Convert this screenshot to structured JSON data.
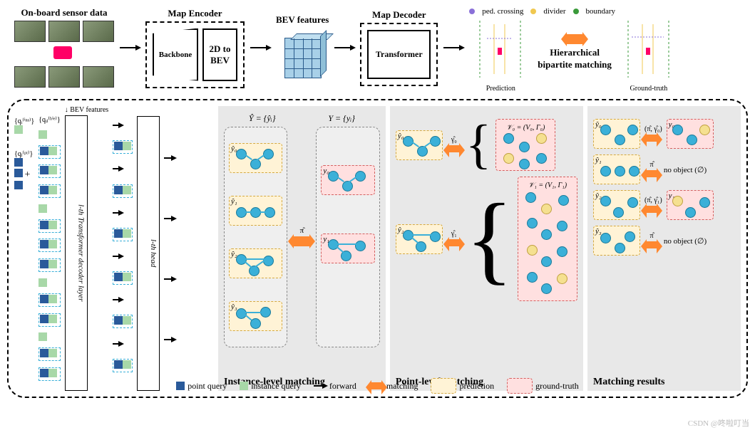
{
  "top": {
    "sensor_label": "On-board sensor data",
    "encoder_label": "Map Encoder",
    "backbone": "Backbone",
    "bev_box": "2D to BEV",
    "bev_feat": "BEV features",
    "decoder_label": "Map Decoder",
    "transformer": "Transformer",
    "pred": "Prediction",
    "gt": "Ground-truth",
    "hmatch1": "Hierarchical",
    "hmatch2": "bipartite matching",
    "legend": {
      "ped": "ped. crossing",
      "ped_color": "#8a70d8",
      "div": "divider",
      "div_color": "#f0c850",
      "bnd": "boundary",
      "bnd_color": "#3a9a3a"
    }
  },
  "bot": {
    "bev_in": "BEV features",
    "q_ins": "{qᵢ⁽ⁱⁿˢ⁾}",
    "q_hie": "{qᵢⱼ⁽ʰⁱᵉ⁾}",
    "q_pt": "{qⱼ⁽ᵖᵗ⁾}",
    "plus": "+",
    "layer": "l-th Transformer decoder layer",
    "head": "l-th head",
    "inst": {
      "title": "Instance-level matching",
      "yhat": "Ŷ = {ŷᵢ}",
      "y": "Y = {yᵢ}",
      "preds": [
        "ŷ₀",
        "ŷ₁",
        "ŷ₂",
        "ŷ₃"
      ],
      "gts": [
        "y₀",
        "y₁"
      ],
      "pi": "π̂"
    },
    "point": {
      "title": "Point-level matching",
      "y0": "ŷ₀",
      "y2": "ŷ₂",
      "g0": "γ̂₀",
      "g1": "γ̂₁",
      "v0": "𝒱₀ = (V₀, Γ₀)",
      "v1": "𝒱₁ = (V₁, Γ₁)"
    },
    "res": {
      "title": "Matching results",
      "rows": [
        {
          "p": "ŷ₀",
          "m": "(π̂, γ̂₀)",
          "g": "y₀"
        },
        {
          "p": "ŷ₁",
          "m": "π̂",
          "g": "no object (∅)"
        },
        {
          "p": "ŷ₂",
          "m": "(π̂, γ̂₁)",
          "g": "y₁"
        },
        {
          "p": "ŷ₃",
          "m": "π̂",
          "g": "no object (∅)"
        }
      ]
    }
  },
  "legend": {
    "pq": "point query",
    "iq": "instance query",
    "fw": "forward",
    "mt": "matching",
    "pr": "prediction",
    "gt": "ground-truth",
    "pq_color": "#2a5a9a",
    "iq_color": "#a8d8a8",
    "pred_color": "#fff3d6",
    "gt_color": "#ffe0e0"
  },
  "watermark": "CSDN @咚啦叮当"
}
